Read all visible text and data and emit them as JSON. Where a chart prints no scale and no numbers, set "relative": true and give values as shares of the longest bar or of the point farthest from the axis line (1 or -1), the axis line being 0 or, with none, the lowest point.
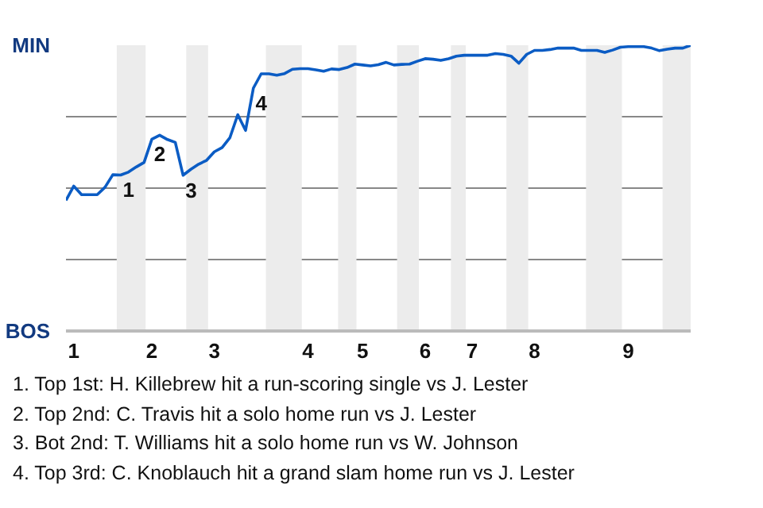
{
  "chart_data": {
    "type": "line",
    "relative": true,
    "categories": [
      null,
      "1",
      null,
      null,
      null,
      null,
      null,
      null,
      null,
      null,
      null,
      "2",
      null,
      null,
      null,
      null,
      null,
      null,
      null,
      "3",
      null,
      null,
      null,
      null,
      null,
      null,
      null,
      null,
      null,
      null,
      null,
      "4",
      null,
      null,
      null,
      null,
      null,
      null,
      "5",
      null,
      null,
      null,
      null,
      null,
      null,
      null,
      "6",
      null,
      null,
      null,
      null,
      null,
      "7",
      null,
      null,
      null,
      null,
      null,
      null,
      null,
      "8",
      null,
      null,
      null,
      null,
      null,
      null,
      null,
      null,
      null,
      null,
      null,
      "9",
      null,
      null,
      null,
      null,
      null,
      null,
      null,
      null
    ],
    "series": [
      {
        "color": "#0b5cc4",
        "values": [
          0.457,
          0.507,
          0.477,
          0.477,
          0.477,
          0.503,
          0.547,
          0.546,
          0.556,
          0.574,
          0.59,
          0.671,
          0.685,
          0.67,
          0.66,
          0.545,
          0.566,
          0.584,
          0.597,
          0.627,
          0.642,
          0.677,
          0.757,
          0.702,
          0.85,
          0.9,
          0.9,
          0.895,
          0.901,
          0.916,
          0.918,
          0.918,
          0.914,
          0.909,
          0.917,
          0.915,
          0.922,
          0.934,
          0.931,
          0.928,
          0.932,
          0.94,
          0.931,
          0.933,
          0.934,
          0.944,
          0.953,
          0.951,
          0.947,
          0.953,
          0.962,
          0.965,
          0.965,
          0.965,
          0.965,
          0.971,
          0.968,
          0.962,
          0.937,
          0.968,
          0.982,
          0.982,
          0.985,
          0.99,
          0.99,
          0.99,
          0.982,
          0.982,
          0.982,
          0.975,
          0.983,
          0.993,
          0.995,
          0.995,
          0.995,
          0.99,
          0.981,
          0.986,
          0.99,
          0.99,
          1
        ]
      }
    ],
    "grid": "y",
    "line_style": "solid",
    "annotations": [
      "MIN",
      "BOS",
      {
        "text": "1",
        "y": 0.546
      },
      {
        "text": "2",
        "y": 0.671
      },
      {
        "text": "3",
        "y": 0.545
      },
      {
        "text": "4",
        "y": 0.85
      },
      "1. Top 1st: H. Killebrew hit a run-scoring single vs J. Lester",
      "2. Top 2nd: C. Travis hit a solo home run vs J. Lester",
      "3. Bot 2nd: T. Williams hit a solo home run vs W. Johnson",
      "4. Top 3rd: C. Knoblauch hit a grand slam home run vs J. Lester"
    ]
  }
}
